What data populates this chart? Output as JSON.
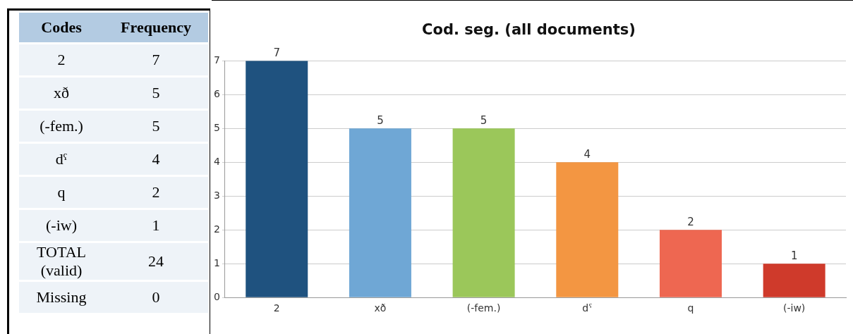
{
  "chart_data": [
    {
      "type": "other",
      "annotations": [
        "Codes",
        "Frequency",
        "2",
        "7",
        "xð",
        "5",
        "(-fem.)",
        "5",
        "dˤ",
        "4",
        "q",
        "2",
        "(-iw)",
        "1",
        "TOTAL (valid)",
        "24",
        "Missing",
        "0"
      ]
    },
    {
      "type": "bar",
      "title": "Cod. seg. (all documents)",
      "categories": [
        "2",
        "xð",
        "(-fem.)",
        "dˤ",
        "q",
        "(-iw)"
      ],
      "values": [
        7,
        5,
        5,
        4,
        2,
        1
      ],
      "colors": [
        "#1f527f",
        "#6fa7d5",
        "#9bc75a",
        "#f39642",
        "#ee6751",
        "#cf3a2b"
      ],
      "ylim": [
        0,
        7
      ],
      "yticks": [
        0,
        1,
        2,
        3,
        4,
        5,
        6,
        7
      ],
      "grid": "y",
      "data_labels": true
    }
  ]
}
